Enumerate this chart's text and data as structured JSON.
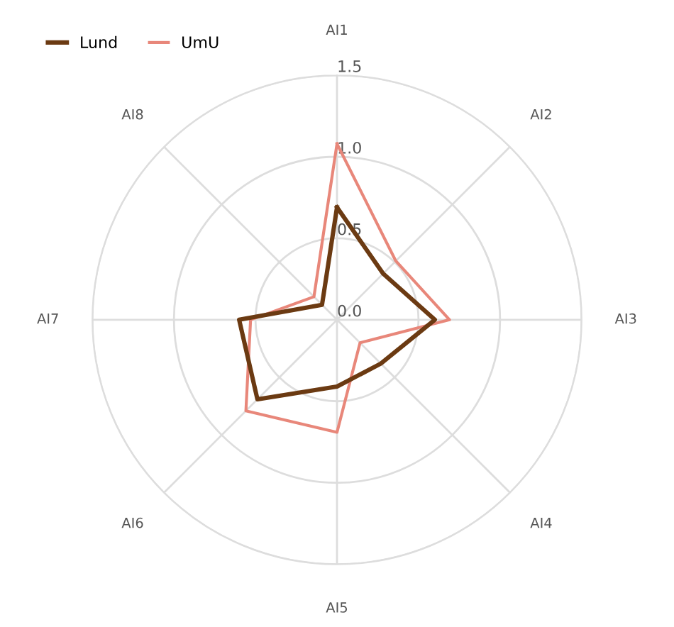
{
  "chart_data": {
    "type": "radar",
    "categories": [
      "AI1",
      "AI2",
      "AI3",
      "AI4",
      "AI5",
      "AI6",
      "AI7",
      "AI8"
    ],
    "series": [
      {
        "name": "Lund",
        "color": "#6b3a12",
        "values": [
          0.69,
          0.4,
          0.6,
          0.38,
          0.41,
          0.69,
          0.6,
          0.13
        ]
      },
      {
        "name": "UmU",
        "color": "#e8877a",
        "values": [
          1.08,
          0.51,
          0.69,
          0.2,
          0.69,
          0.79,
          0.53,
          0.2
        ]
      }
    ],
    "ylim": [
      0,
      1.5
    ],
    "yticks": [
      "0.0",
      0.5,
      "1.0",
      1.5
    ],
    "grid": true,
    "legend": "top left",
    "marker": "none",
    "line_style": "solid"
  }
}
